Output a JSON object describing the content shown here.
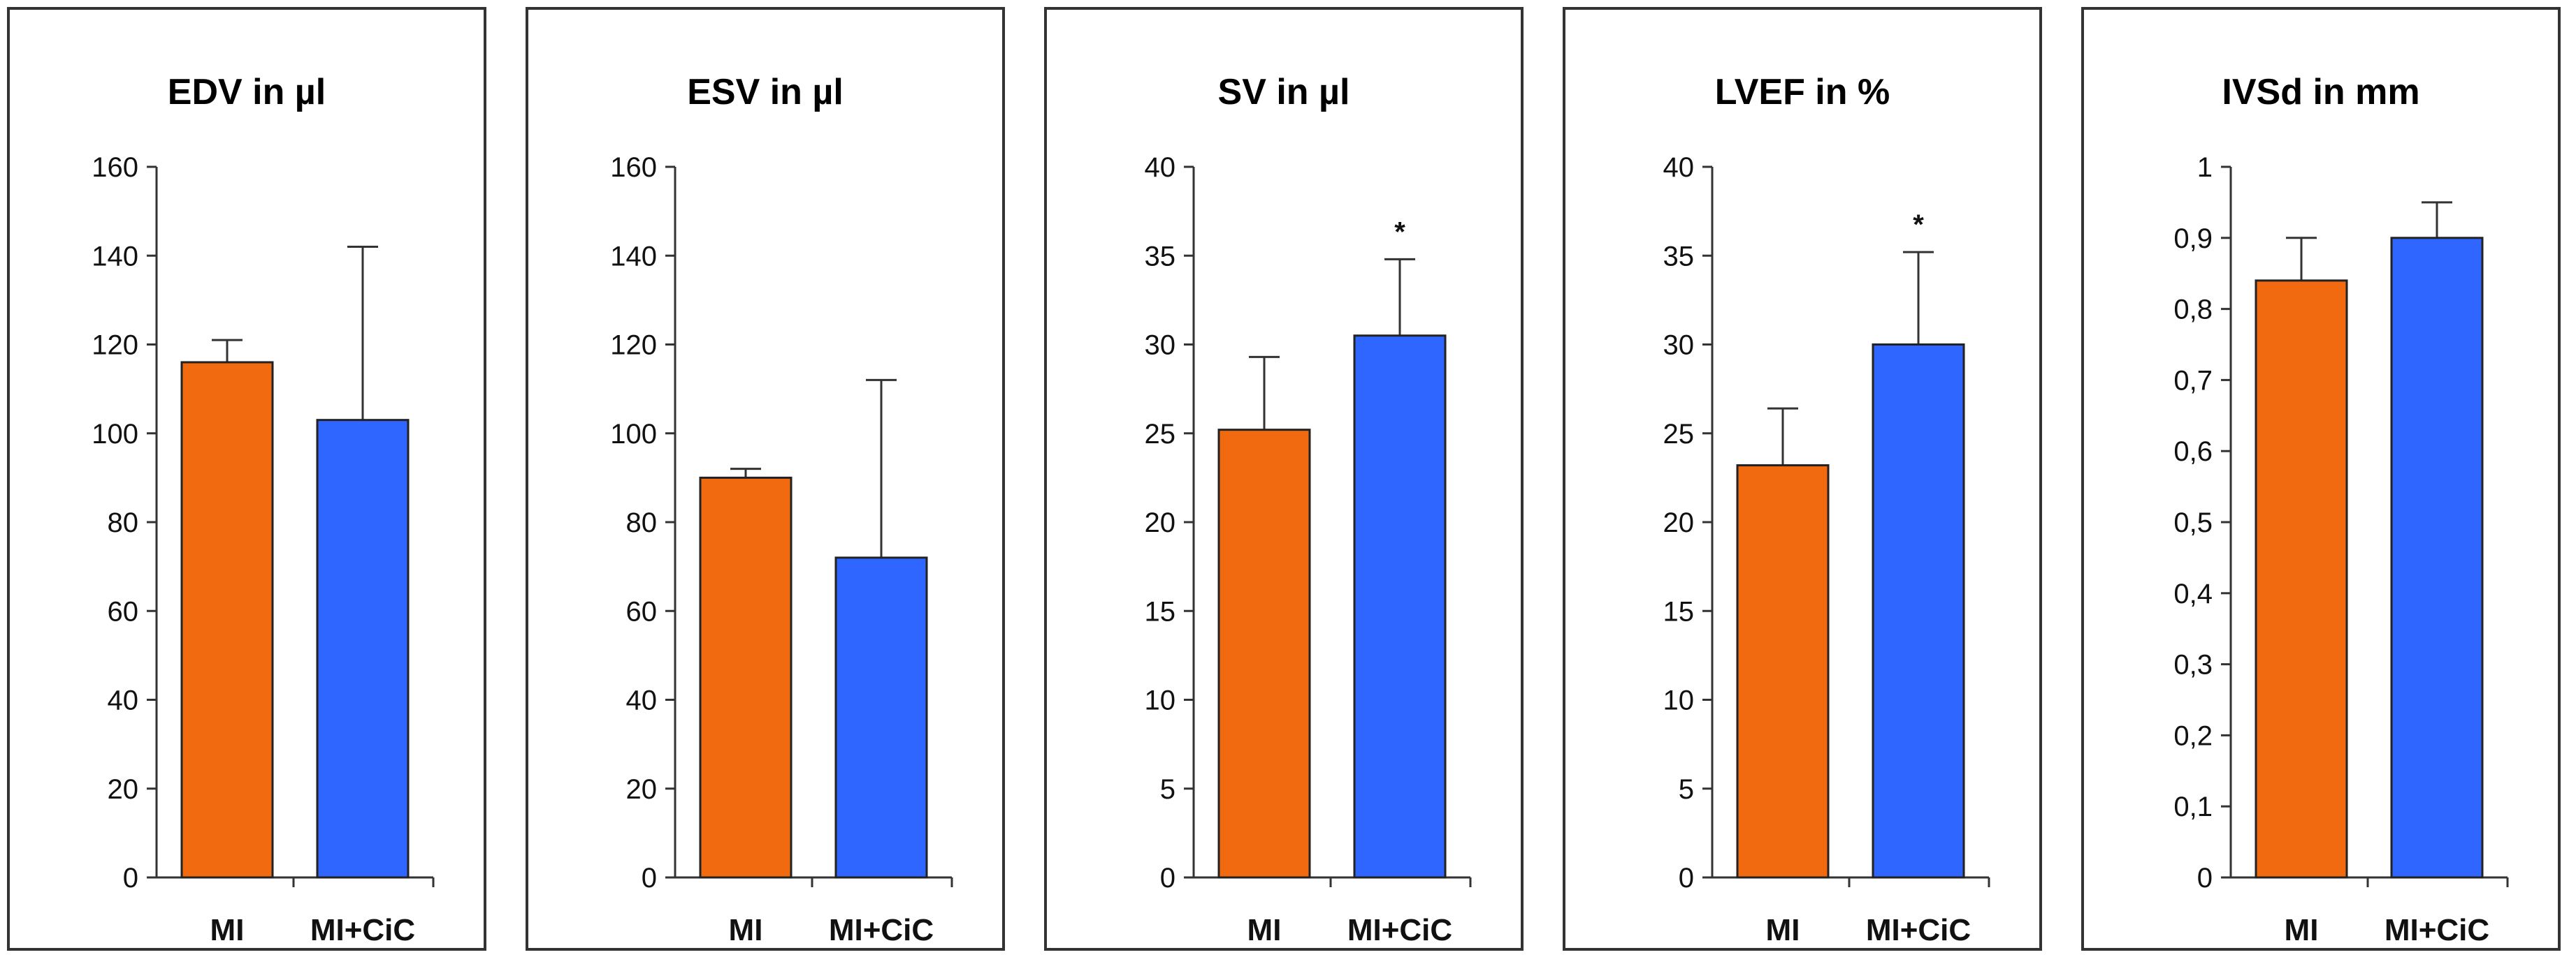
{
  "chart_data": [
    {
      "type": "bar",
      "title": "EDV in µl",
      "categories": [
        "MI",
        "MI+CiC"
      ],
      "values": [
        116,
        103
      ],
      "errors": [
        5,
        39
      ],
      "significance": [
        "",
        ""
      ],
      "colors": [
        "#F26A0F",
        "#2F66FF"
      ],
      "ylim": [
        0,
        160
      ],
      "yticks": [
        0,
        20,
        40,
        60,
        80,
        100,
        120,
        140,
        160
      ],
      "ytick_labels": [
        "0",
        "20",
        "40",
        "60",
        "80",
        "100",
        "120",
        "140",
        "160"
      ],
      "xlabel": "",
      "ylabel": "",
      "grid": false
    },
    {
      "type": "bar",
      "title": "ESV in µl",
      "categories": [
        "MI",
        "MI+CiC"
      ],
      "values": [
        90,
        72
      ],
      "errors": [
        2,
        40
      ],
      "significance": [
        "",
        ""
      ],
      "colors": [
        "#F26A0F",
        "#2F66FF"
      ],
      "ylim": [
        0,
        160
      ],
      "yticks": [
        0,
        20,
        40,
        60,
        80,
        100,
        120,
        140,
        160
      ],
      "ytick_labels": [
        "0",
        "20",
        "40",
        "60",
        "80",
        "100",
        "120",
        "140",
        "160"
      ],
      "xlabel": "",
      "ylabel": "",
      "grid": false
    },
    {
      "type": "bar",
      "title": "SV in µl",
      "categories": [
        "MI",
        "MI+CiC"
      ],
      "values": [
        25.2,
        30.5
      ],
      "errors": [
        4.1,
        4.3
      ],
      "significance": [
        "",
        "*"
      ],
      "colors": [
        "#F26A0F",
        "#2F66FF"
      ],
      "ylim": [
        0,
        40
      ],
      "yticks": [
        0,
        5,
        10,
        15,
        20,
        25,
        30,
        35,
        40
      ],
      "ytick_labels": [
        "0",
        "5",
        "10",
        "15",
        "20",
        "25",
        "30",
        "35",
        "40"
      ],
      "xlabel": "",
      "ylabel": "",
      "grid": false
    },
    {
      "type": "bar",
      "title": "LVEF in %",
      "categories": [
        "MI",
        "MI+CiC"
      ],
      "values": [
        23.2,
        30
      ],
      "errors": [
        3.2,
        5.2
      ],
      "significance": [
        "",
        "*"
      ],
      "colors": [
        "#F26A0F",
        "#2F66FF"
      ],
      "ylim": [
        0,
        40
      ],
      "yticks": [
        0,
        5,
        10,
        15,
        20,
        25,
        30,
        35,
        40
      ],
      "ytick_labels": [
        "0",
        "5",
        "10",
        "15",
        "20",
        "25",
        "30",
        "35",
        "40"
      ],
      "xlabel": "",
      "ylabel": "",
      "grid": false
    },
    {
      "type": "bar",
      "title": "IVSd in mm",
      "categories": [
        "MI",
        "MI+CiC"
      ],
      "values": [
        0.84,
        0.9
      ],
      "errors": [
        0.06,
        0.05
      ],
      "significance": [
        "",
        ""
      ],
      "colors": [
        "#F26A0F",
        "#2F66FF"
      ],
      "ylim": [
        0,
        1
      ],
      "yticks": [
        0,
        0.1,
        0.2,
        0.3,
        0.4,
        0.5,
        0.6,
        0.7,
        0.8,
        0.9,
        1
      ],
      "ytick_labels": [
        "0",
        "0,1",
        "0,2",
        "0,3",
        "0,4",
        "0,5",
        "0,6",
        "0,7",
        "0,8",
        "0,9",
        "1"
      ],
      "xlabel": "",
      "ylabel": "",
      "grid": false
    }
  ]
}
